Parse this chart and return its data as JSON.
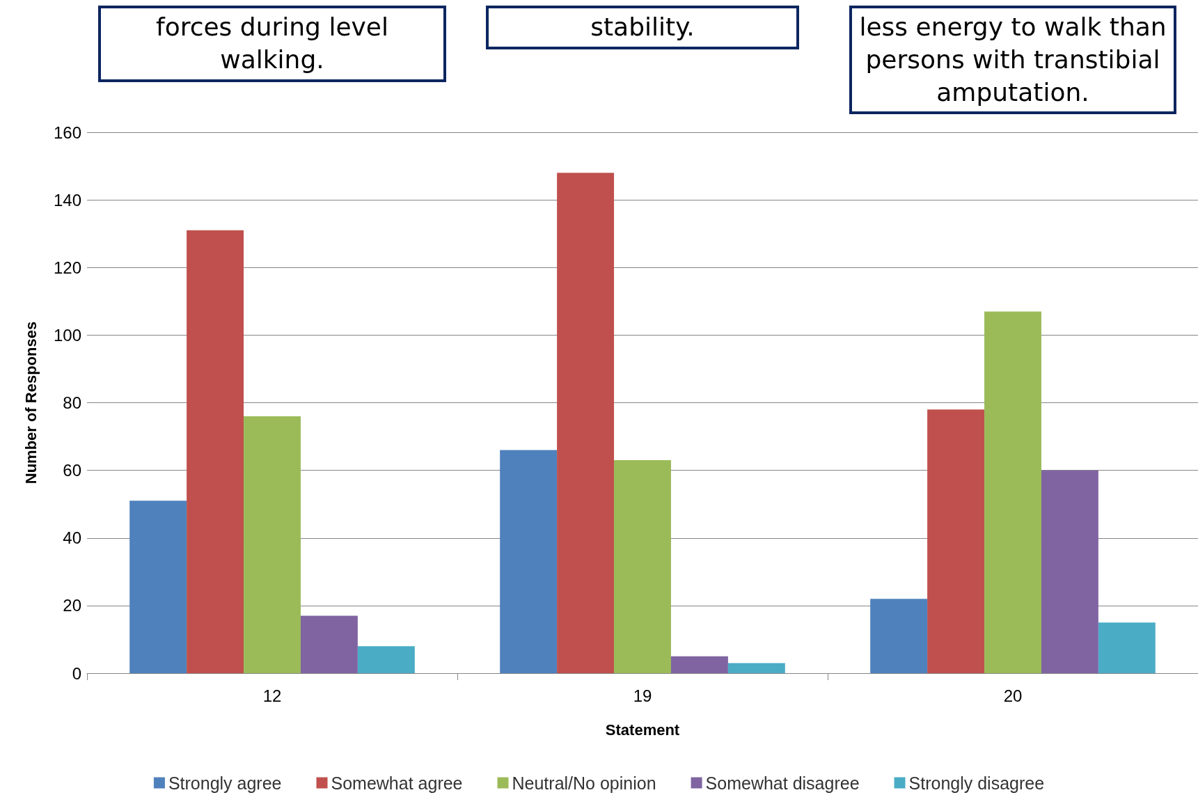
{
  "chart_data": {
    "type": "bar",
    "xlabel": "Statement",
    "ylabel": "Number of Responses",
    "categories": [
      "12",
      "19",
      "20"
    ],
    "series": [
      {
        "name": "Strongly agree",
        "color": "#4f81bd",
        "values": [
          51,
          66,
          22
        ]
      },
      {
        "name": "Somewhat agree",
        "color": "#c0504d",
        "values": [
          131,
          148,
          78
        ]
      },
      {
        "name": "Neutral/No opinion",
        "color": "#9bbb59",
        "values": [
          76,
          63,
          107
        ]
      },
      {
        "name": "Somewhat disagree",
        "color": "#8064a2",
        "values": [
          17,
          5,
          60
        ]
      },
      {
        "name": "Strongly disagree",
        "color": "#4bacc6",
        "values": [
          8,
          3,
          15
        ]
      }
    ],
    "annotations": [
      "forces during level walking.",
      "stability.",
      "less energy to walk than persons with transtibial amputation."
    ],
    "ylim": [
      0,
      160
    ],
    "yticks": [
      0,
      20,
      40,
      60,
      80,
      100,
      120,
      140,
      160
    ],
    "grid": "y",
    "legend": "bottom"
  }
}
